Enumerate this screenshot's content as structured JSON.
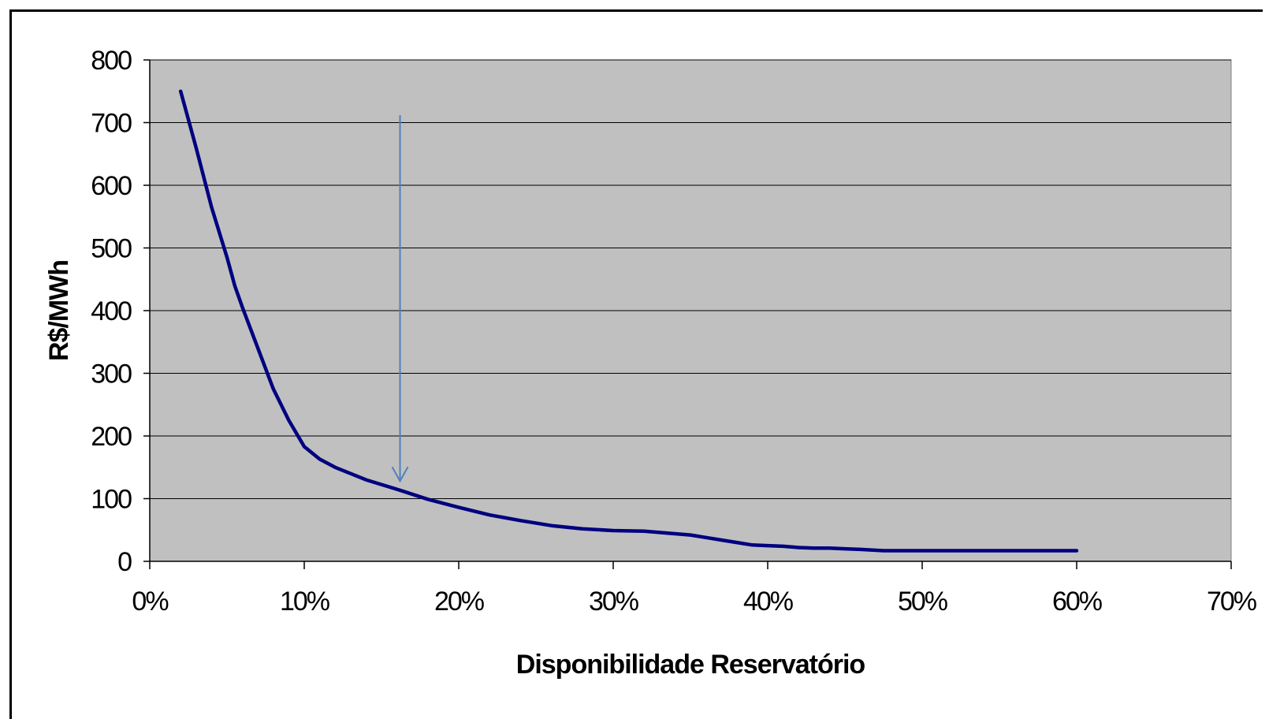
{
  "chart_data": {
    "type": "line",
    "title": "",
    "xlabel": "Disponibilidade Reservatório",
    "ylabel": "R$/MWh",
    "xlim": [
      0,
      0.7
    ],
    "ylim": [
      0,
      800
    ],
    "x_ticks": [
      0,
      0.1,
      0.2,
      0.3,
      0.4,
      0.5,
      0.6,
      0.7
    ],
    "x_tick_labels": [
      "0%",
      "10%",
      "20%",
      "30%",
      "40%",
      "50%",
      "60%",
      "70%"
    ],
    "y_ticks": [
      0,
      100,
      200,
      300,
      400,
      500,
      600,
      700,
      800
    ],
    "y_tick_labels": [
      "0",
      "100",
      "200",
      "300",
      "400",
      "500",
      "600",
      "700",
      "800"
    ],
    "grid": {
      "horizontal": true,
      "vertical": false
    },
    "legend": "none",
    "colors": {
      "plot_background": "#c0c0c0",
      "series_line": "#000080",
      "arrow": "#4f81bd",
      "grid": "#000000"
    },
    "series": [
      {
        "x": [
          0.02,
          0.03,
          0.04,
          0.05,
          0.055,
          0.06,
          0.07,
          0.08,
          0.09,
          0.1,
          0.11,
          0.12,
          0.14,
          0.16,
          0.18,
          0.2,
          0.22,
          0.24,
          0.26,
          0.28,
          0.3,
          0.32,
          0.33,
          0.34,
          0.35,
          0.36,
          0.37,
          0.38,
          0.39,
          0.4,
          0.41,
          0.42,
          0.43,
          0.44,
          0.45,
          0.46,
          0.475,
          0.5,
          0.55,
          0.6
        ],
        "y": [
          750,
          660,
          565,
          485,
          440,
          405,
          340,
          275,
          225,
          183,
          163,
          150,
          130,
          115,
          99,
          86,
          74,
          65,
          57,
          52,
          49,
          48,
          46,
          44,
          42,
          38,
          34,
          30,
          26,
          25,
          24,
          22,
          21,
          21,
          20,
          19,
          17,
          17,
          17,
          17
        ]
      }
    ],
    "annotations": [
      {
        "type": "arrow",
        "direction": "down",
        "x": 0.162,
        "y_from": 712,
        "y_to": 128
      }
    ]
  }
}
